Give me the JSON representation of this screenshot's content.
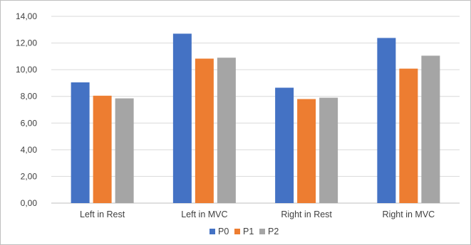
{
  "chart_data": {
    "type": "bar",
    "categories": [
      "Left in Rest",
      "Left in MVC",
      "Right in Rest",
      "Right in MVC"
    ],
    "series": [
      {
        "name": "P0",
        "color": "#4472c4",
        "values": [
          9.05,
          12.7,
          8.65,
          12.38
        ]
      },
      {
        "name": "P1",
        "color": "#ed7d31",
        "values": [
          8.05,
          10.83,
          7.8,
          10.08
        ]
      },
      {
        "name": "P2",
        "color": "#a5a5a5",
        "values": [
          7.85,
          10.9,
          7.9,
          11.05
        ]
      }
    ],
    "y_ticks": [
      "0,00",
      "2,00",
      "4,00",
      "6,00",
      "8,00",
      "10,00",
      "12,00",
      "14,00"
    ],
    "ylim": [
      0,
      14
    ],
    "grid": true,
    "legend_position": "bottom"
  }
}
